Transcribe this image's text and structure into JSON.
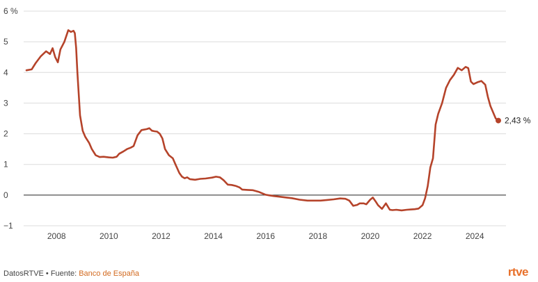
{
  "chart_data": {
    "type": "line",
    "title": "",
    "xlabel": "",
    "ylabel": "",
    "y_unit_label": "6 %",
    "ylim": [
      -1,
      6
    ],
    "y_ticks": [
      -1,
      0,
      1,
      2,
      3,
      4,
      5,
      6
    ],
    "y_tick_labels": [
      "−1",
      "0",
      "1",
      "2",
      "3",
      "4",
      "5",
      "6 %"
    ],
    "xlim": [
      2006.85,
      2024.9
    ],
    "x_ticks": [
      2008,
      2010,
      2012,
      2014,
      2016,
      2018,
      2020,
      2022,
      2024
    ],
    "x_tick_labels": [
      "2008",
      "2010",
      "2012",
      "2014",
      "2016",
      "2018",
      "2020",
      "2022",
      "2024"
    ],
    "grid": true,
    "legend": "none",
    "series_color": "#b5432a",
    "end_label": "2,43 %",
    "series": [
      {
        "x": [
          2006.85,
          2007.05,
          2007.2,
          2007.4,
          2007.6,
          2007.75,
          2007.85,
          2007.95,
          2008.05,
          2008.15,
          2008.3,
          2008.45,
          2008.55,
          2008.65,
          2008.7,
          2008.75,
          2008.8,
          2008.85,
          2008.9,
          2009.0,
          2009.1,
          2009.25,
          2009.35,
          2009.5,
          2009.65,
          2009.8,
          2010.0,
          2010.15,
          2010.3,
          2010.4,
          2010.55,
          2010.7,
          2010.85,
          2010.95,
          2011.1,
          2011.25,
          2011.45,
          2011.55,
          2011.65,
          2011.75,
          2011.85,
          2011.95,
          2012.05,
          2012.15,
          2012.3,
          2012.45,
          2012.55,
          2012.7,
          2012.8,
          2012.9,
          2013.0,
          2013.1,
          2013.3,
          2013.5,
          2013.7,
          2013.95,
          2014.1,
          2014.25,
          2014.4,
          2014.55,
          2014.7,
          2014.85,
          2015.0,
          2015.1,
          2015.3,
          2015.5,
          2015.75,
          2016.0,
          2016.15,
          2016.3,
          2016.5,
          2016.8,
          2017.0,
          2017.3,
          2017.6,
          2017.9,
          2018.1,
          2018.35,
          2018.6,
          2018.85,
          2019.05,
          2019.2,
          2019.35,
          2019.5,
          2019.6,
          2019.75,
          2019.85,
          2020.0,
          2020.1,
          2020.2,
          2020.3,
          2020.45,
          2020.6,
          2020.75,
          2020.85,
          2021.0,
          2021.2,
          2021.4,
          2021.55,
          2021.7,
          2021.85,
          2022.0,
          2022.1,
          2022.2,
          2022.3,
          2022.4,
          2022.5,
          2022.6,
          2022.75,
          2022.9,
          2023.05,
          2023.2,
          2023.35,
          2023.5,
          2023.65,
          2023.75,
          2023.85,
          2023.95,
          2024.1,
          2024.25,
          2024.4,
          2024.5,
          2024.6,
          2024.7,
          2024.8,
          2024.9
        ],
        "values": [
          4.07,
          4.1,
          4.3,
          4.53,
          4.69,
          4.6,
          4.79,
          4.5,
          4.33,
          4.75,
          5.0,
          5.38,
          5.32,
          5.36,
          5.28,
          4.8,
          4.0,
          3.3,
          2.6,
          2.1,
          1.9,
          1.7,
          1.5,
          1.3,
          1.24,
          1.25,
          1.23,
          1.22,
          1.25,
          1.35,
          1.42,
          1.5,
          1.55,
          1.6,
          1.95,
          2.12,
          2.15,
          2.18,
          2.1,
          2.08,
          2.07,
          2.0,
          1.85,
          1.5,
          1.3,
          1.2,
          1.0,
          0.72,
          0.6,
          0.55,
          0.58,
          0.52,
          0.5,
          0.53,
          0.54,
          0.57,
          0.6,
          0.58,
          0.48,
          0.34,
          0.33,
          0.3,
          0.25,
          0.18,
          0.17,
          0.16,
          0.1,
          0.01,
          -0.01,
          -0.03,
          -0.05,
          -0.08,
          -0.1,
          -0.15,
          -0.18,
          -0.18,
          -0.18,
          -0.16,
          -0.14,
          -0.11,
          -0.12,
          -0.18,
          -0.35,
          -0.32,
          -0.27,
          -0.27,
          -0.3,
          -0.15,
          -0.08,
          -0.2,
          -0.33,
          -0.45,
          -0.27,
          -0.48,
          -0.49,
          -0.48,
          -0.5,
          -0.48,
          -0.47,
          -0.46,
          -0.44,
          -0.33,
          -0.1,
          0.3,
          0.9,
          1.2,
          2.3,
          2.65,
          3.0,
          3.5,
          3.75,
          3.92,
          4.15,
          4.07,
          4.18,
          4.14,
          3.7,
          3.62,
          3.68,
          3.72,
          3.6,
          3.2,
          2.9,
          2.7,
          2.5,
          2.43
        ]
      }
    ]
  },
  "footer": {
    "brand_text": "DatosRTVE • Fuente: ",
    "source_link": "Banco de España"
  },
  "logo": "rtve"
}
